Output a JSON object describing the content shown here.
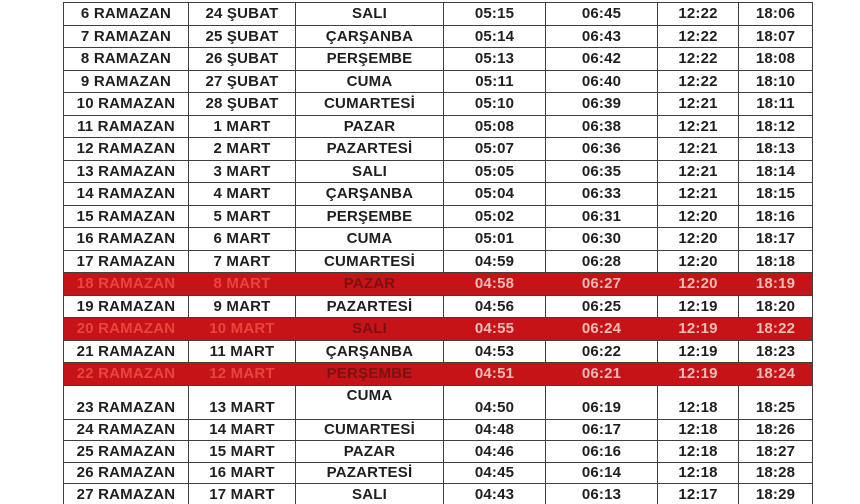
{
  "colors": {
    "border": "#3f3f3f",
    "text": "#1f1f1f",
    "highlight_bg": "#c51318",
    "highlight_label": "#e8453e",
    "highlight_weekday": "#7c1112",
    "highlight_time": "#f2bcb6",
    "page_bg": "#ffffff"
  },
  "table": {
    "description": "Ramazan imsakiye (prayer times) table, header cropped out of view",
    "columns": [
      "ramazan-day",
      "date",
      "weekday",
      "time-1",
      "time-2",
      "time-3",
      "time-4"
    ],
    "rows": [
      {
        "day": "6 RAMAZAN",
        "date": "24 ŞUBAT",
        "weekday": "SALI",
        "times": [
          "05:15",
          "06:45",
          "12:22",
          "18:06"
        ],
        "highlight": false
      },
      {
        "day": "7 RAMAZAN",
        "date": "25 ŞUBAT",
        "weekday": "ÇARŞANBA",
        "times": [
          "05:14",
          "06:43",
          "12:22",
          "18:07"
        ],
        "highlight": false
      },
      {
        "day": "8 RAMAZAN",
        "date": "26 ŞUBAT",
        "weekday": "PERŞEMBE",
        "times": [
          "05:13",
          "06:42",
          "12:22",
          "18:08"
        ],
        "highlight": false
      },
      {
        "day": "9 RAMAZAN",
        "date": "27 ŞUBAT",
        "weekday": "CUMA",
        "times": [
          "05:11",
          "06:40",
          "12:22",
          "18:10"
        ],
        "highlight": false
      },
      {
        "day": "10 RAMAZAN",
        "date": "28 ŞUBAT",
        "weekday": "CUMARTESİ",
        "times": [
          "05:10",
          "06:39",
          "12:21",
          "18:11"
        ],
        "highlight": false
      },
      {
        "day": "11 RAMAZAN",
        "date": "1 MART",
        "weekday": "PAZAR",
        "times": [
          "05:08",
          "06:38",
          "12:21",
          "18:12"
        ],
        "highlight": false
      },
      {
        "day": "12 RAMAZAN",
        "date": "2 MART",
        "weekday": "PAZARTESİ",
        "times": [
          "05:07",
          "06:36",
          "12:21",
          "18:13"
        ],
        "highlight": false
      },
      {
        "day": "13 RAMAZAN",
        "date": "3 MART",
        "weekday": "SALI",
        "times": [
          "05:05",
          "06:35",
          "12:21",
          "18:14"
        ],
        "highlight": false
      },
      {
        "day": "14 RAMAZAN",
        "date": "4 MART",
        "weekday": "ÇARŞANBA",
        "times": [
          "05:04",
          "06:33",
          "12:21",
          "18:15"
        ],
        "highlight": false
      },
      {
        "day": "15 RAMAZAN",
        "date": "5 MART",
        "weekday": "PERŞEMBE",
        "times": [
          "05:02",
          "06:31",
          "12:20",
          "18:16"
        ],
        "highlight": false
      },
      {
        "day": "16 RAMAZAN",
        "date": "6 MART",
        "weekday": "CUMA",
        "times": [
          "05:01",
          "06:30",
          "12:20",
          "18:17"
        ],
        "highlight": false
      },
      {
        "day": "17 RAMAZAN",
        "date": "7 MART",
        "weekday": "CUMARTESİ",
        "times": [
          "04:59",
          "06:28",
          "12:20",
          "18:18"
        ],
        "highlight": false
      },
      {
        "day": "18 RAMAZAN",
        "date": "8 MART",
        "weekday": "PAZAR",
        "times": [
          "04:58",
          "06:27",
          "12:20",
          "18:19"
        ],
        "highlight": true
      },
      {
        "day": "19 RAMAZAN",
        "date": "9 MART",
        "weekday": "PAZARTESİ",
        "times": [
          "04:56",
          "06:25",
          "12:19",
          "18:20"
        ],
        "highlight": false
      },
      {
        "day": "20 RAMAZAN",
        "date": "10 MART",
        "weekday": "SALI",
        "times": [
          "04:55",
          "06:24",
          "12:19",
          "18:22"
        ],
        "highlight": true
      },
      {
        "day": "21 RAMAZAN",
        "date": "11 MART",
        "weekday": "ÇARŞANBA",
        "times": [
          "04:53",
          "06:22",
          "12:19",
          "18:23"
        ],
        "highlight": false
      },
      {
        "day": "22 RAMAZAN",
        "date": "12 MART",
        "weekday": "PERŞEMBE",
        "times": [
          "04:51",
          "06:21",
          "12:19",
          "18:24"
        ],
        "highlight": true
      },
      {
        "day": "23 RAMAZAN",
        "date": "13 MART",
        "weekday": "CUMA",
        "times": [
          "04:50",
          "06:19",
          "12:18",
          "18:25"
        ],
        "highlight": false,
        "variant": "tall-weekday-top"
      },
      {
        "day": "24 RAMAZAN",
        "date": "14 MART",
        "weekday": "CUMARTESİ",
        "times": [
          "04:48",
          "06:17",
          "12:18",
          "18:26"
        ],
        "highlight": false
      },
      {
        "day": "25 RAMAZAN",
        "date": "15 MART",
        "weekday": "PAZAR",
        "times": [
          "04:46",
          "06:16",
          "12:18",
          "18:27"
        ],
        "highlight": false
      },
      {
        "day": "26 RAMAZAN",
        "date": "16 MART",
        "weekday": "PAZARTESİ",
        "times": [
          "04:45",
          "06:14",
          "12:18",
          "18:28"
        ],
        "highlight": false
      },
      {
        "day": "27 RAMAZAN",
        "date": "17 MART",
        "weekday": "SALI",
        "times": [
          "04:43",
          "06:13",
          "12:17",
          "18:29"
        ],
        "highlight": false
      }
    ]
  }
}
